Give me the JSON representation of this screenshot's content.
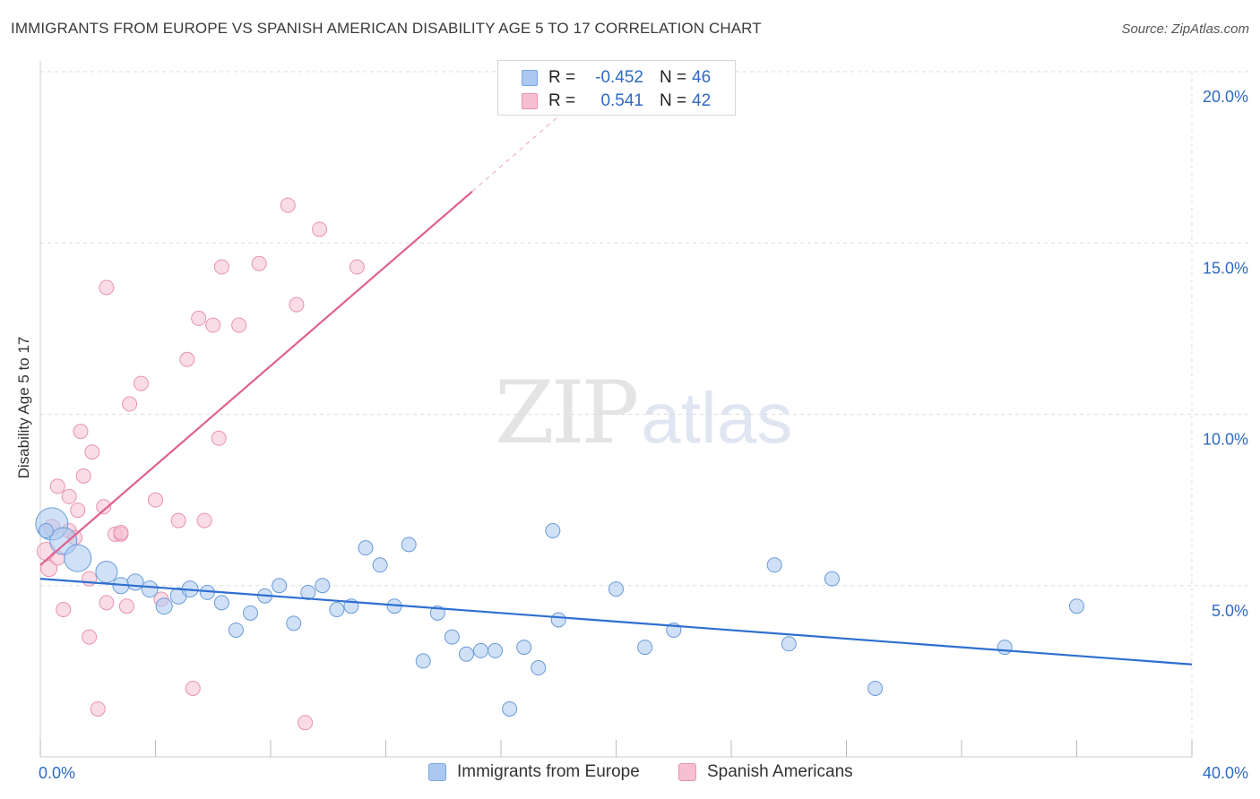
{
  "header": {
    "title": "IMMIGRANTS FROM EUROPE VS SPANISH AMERICAN DISABILITY AGE 5 TO 17 CORRELATION CHART",
    "source": "Source: ZipAtlas.com"
  },
  "watermark": {
    "zip": "ZIP",
    "atlas": "atlas"
  },
  "legend_box": {
    "rows": [
      {
        "r_label": "R =",
        "r_value": "-0.452",
        "n_label": "N =",
        "n_value": "46",
        "color": "#aac8f0",
        "border": "#7aa6e0"
      },
      {
        "r_label": "R =",
        "r_value": "0.541",
        "n_label": "N =",
        "n_value": "42",
        "color": "#f6c0d2",
        "border": "#e892b0"
      }
    ]
  },
  "bottom_legend": {
    "items": [
      {
        "label": "Immigrants from Europe",
        "color": "#aac8f0",
        "border": "#7aa6e0"
      },
      {
        "label": "Spanish Americans",
        "color": "#f6c0d2",
        "border": "#e892b0"
      }
    ]
  },
  "chart_data": {
    "type": "scatter",
    "title": "IMMIGRANTS FROM EUROPE VS SPANISH AMERICAN DISABILITY AGE 5 TO 17 CORRELATION CHART",
    "xlabel": "",
    "ylabel": "Disability Age 5 to 17",
    "xlim": [
      0,
      40
    ],
    "ylim": [
      0,
      20
    ],
    "x_tick_labels": [
      "0.0%",
      "40.0%"
    ],
    "y_ticks": [
      5,
      10,
      15,
      20
    ],
    "y_tick_labels": [
      "5.0%",
      "10.0%",
      "15.0%",
      "20.0%"
    ],
    "grid": true,
    "legend_position": "bottom",
    "colors": {
      "europe_fill": "#aac8f0",
      "europe_stroke": "#6a9ad8",
      "europe_line": "#2e6fd0",
      "spanish_fill": "#f6c0d2",
      "spanish_stroke": "#e892b0",
      "spanish_line": "#e06090",
      "grid": "#dddddd",
      "tick_text": "#2e6ac2"
    },
    "series": [
      {
        "name": "Immigrants from Europe",
        "r": -0.452,
        "n": 46,
        "trend": {
          "x": [
            0,
            40
          ],
          "y": [
            5.2,
            2.7
          ]
        },
        "points": [
          [
            0.4,
            6.8,
            18
          ],
          [
            0.8,
            6.3,
            15
          ],
          [
            1.3,
            5.8,
            15
          ],
          [
            2.3,
            5.4,
            12
          ],
          [
            2.8,
            5.0,
            9
          ],
          [
            3.3,
            5.1,
            9
          ],
          [
            3.8,
            4.9,
            9
          ],
          [
            4.3,
            4.4,
            9
          ],
          [
            4.8,
            4.7,
            9
          ],
          [
            5.2,
            4.9,
            9
          ],
          [
            5.8,
            4.8,
            8
          ],
          [
            6.3,
            4.5,
            8
          ],
          [
            6.8,
            3.7,
            8
          ],
          [
            7.3,
            4.2,
            8
          ],
          [
            7.8,
            4.7,
            8
          ],
          [
            8.3,
            5.0,
            8
          ],
          [
            8.8,
            3.9,
            8
          ],
          [
            9.3,
            4.8,
            8
          ],
          [
            9.8,
            5.0,
            8
          ],
          [
            10.3,
            4.3,
            8
          ],
          [
            10.8,
            4.4,
            8
          ],
          [
            11.3,
            6.1,
            8
          ],
          [
            11.8,
            5.6,
            8
          ],
          [
            12.3,
            4.4,
            8
          ],
          [
            12.8,
            6.2,
            8
          ],
          [
            13.3,
            2.8,
            8
          ],
          [
            13.8,
            4.2,
            8
          ],
          [
            14.3,
            3.5,
            8
          ],
          [
            14.8,
            3.0,
            8
          ],
          [
            15.3,
            3.1,
            8
          ],
          [
            15.8,
            3.1,
            8
          ],
          [
            16.3,
            1.4,
            8
          ],
          [
            16.8,
            3.2,
            8
          ],
          [
            17.3,
            2.6,
            8
          ],
          [
            17.8,
            6.6,
            8
          ],
          [
            18.0,
            4.0,
            8
          ],
          [
            20.0,
            4.9,
            8
          ],
          [
            21.0,
            3.2,
            8
          ],
          [
            22.0,
            3.7,
            8
          ],
          [
            25.5,
            5.6,
            8
          ],
          [
            26.0,
            3.3,
            8
          ],
          [
            27.5,
            5.2,
            8
          ],
          [
            29.0,
            2.0,
            8
          ],
          [
            33.5,
            3.2,
            8
          ],
          [
            36.0,
            4.4,
            8
          ],
          [
            0.2,
            6.6,
            8
          ]
        ]
      },
      {
        "name": "Spanish Americans",
        "r": 0.541,
        "n": 42,
        "trend": {
          "x": [
            0,
            15
          ],
          "y": [
            5.6,
            16.5
          ]
        },
        "trend_ext": {
          "x": [
            15,
            18
          ],
          "y": [
            16.5,
            18.7
          ]
        },
        "points": [
          [
            0.2,
            6.0,
            10
          ],
          [
            0.3,
            5.5,
            9
          ],
          [
            0.4,
            6.7,
            9
          ],
          [
            0.6,
            5.8,
            8
          ],
          [
            0.6,
            7.9,
            8
          ],
          [
            0.8,
            4.3,
            8
          ],
          [
            1.0,
            7.6,
            8
          ],
          [
            1.0,
            6.6,
            8
          ],
          [
            1.3,
            7.2,
            8
          ],
          [
            1.4,
            9.5,
            8
          ],
          [
            1.5,
            8.2,
            8
          ],
          [
            1.7,
            5.2,
            8
          ],
          [
            1.7,
            3.5,
            8
          ],
          [
            1.8,
            8.9,
            8
          ],
          [
            2.0,
            1.4,
            8
          ],
          [
            2.2,
            7.3,
            8
          ],
          [
            2.3,
            4.5,
            8
          ],
          [
            2.3,
            13.7,
            8
          ],
          [
            2.6,
            6.5,
            8
          ],
          [
            2.8,
            6.5,
            8
          ],
          [
            3.0,
            4.4,
            8
          ],
          [
            3.1,
            10.3,
            8
          ],
          [
            3.5,
            10.9,
            8
          ],
          [
            4.0,
            7.5,
            8
          ],
          [
            4.2,
            4.6,
            8
          ],
          [
            4.8,
            6.9,
            8
          ],
          [
            5.1,
            11.6,
            8
          ],
          [
            5.3,
            2.0,
            8
          ],
          [
            5.5,
            12.8,
            8
          ],
          [
            5.7,
            6.9,
            8
          ],
          [
            6.0,
            12.6,
            8
          ],
          [
            6.2,
            9.3,
            8
          ],
          [
            6.3,
            14.3,
            8
          ],
          [
            6.9,
            12.6,
            8
          ],
          [
            7.6,
            14.4,
            8
          ],
          [
            8.6,
            16.1,
            8
          ],
          [
            8.9,
            13.2,
            8
          ],
          [
            9.2,
            1.0,
            8
          ],
          [
            9.7,
            15.4,
            8
          ],
          [
            11.0,
            14.3,
            8
          ],
          [
            2.8,
            6.55,
            8
          ],
          [
            1.2,
            6.4,
            8
          ]
        ]
      }
    ]
  }
}
